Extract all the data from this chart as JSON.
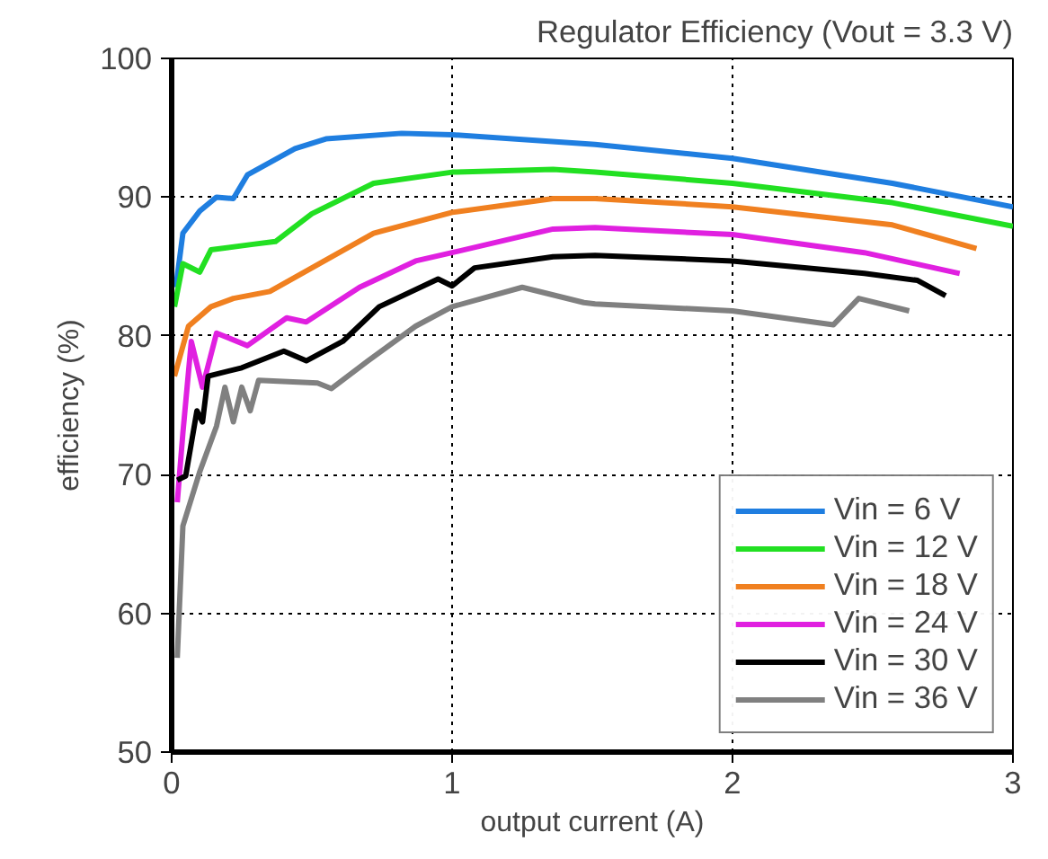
{
  "chart_data": {
    "type": "line",
    "title": "Regulator Efficiency (Vout = 3.3 V)",
    "xlabel": "output current (A)",
    "ylabel": "efficiency (%)",
    "xlim": [
      0,
      3
    ],
    "ylim": [
      50,
      100
    ],
    "xticks": [
      0,
      1,
      2,
      3
    ],
    "yticks": [
      50,
      60,
      70,
      80,
      90,
      100
    ],
    "grid": true,
    "legend": "bottom right",
    "line_style": "solid",
    "marker": "none",
    "series": [
      {
        "name": "Vin = 6 V",
        "color": "#1f7ee0",
        "x": [
          0.015,
          0.04,
          0.1,
          0.16,
          0.22,
          0.27,
          0.44,
          0.55,
          0.82,
          1.0,
          1.51,
          2.0,
          2.57,
          3.0
        ],
        "values": [
          83.5,
          87.4,
          89,
          90,
          89.9,
          91.6,
          93.5,
          94.2,
          94.6,
          94.5,
          93.8,
          92.8,
          91,
          89.3
        ]
      },
      {
        "name": "Vin = 12 V",
        "color": "#22e022",
        "x": [
          0.01,
          0.04,
          0.1,
          0.14,
          0.29,
          0.37,
          0.5,
          0.72,
          1.0,
          1.36,
          1.51,
          2.0,
          2.57,
          3.0
        ],
        "values": [
          82.1,
          85.2,
          84.6,
          86.2,
          86.6,
          86.8,
          88.8,
          91,
          91.8,
          92,
          91.8,
          91,
          89.6,
          87.9
        ]
      },
      {
        "name": "Vin = 18 V",
        "color": "#f08020",
        "x": [
          0.01,
          0.06,
          0.14,
          0.22,
          0.35,
          0.5,
          0.72,
          1.0,
          1.36,
          1.51,
          2.0,
          2.57,
          2.87
        ],
        "values": [
          77.1,
          80.7,
          82.1,
          82.7,
          83.2,
          84.9,
          87.4,
          88.9,
          89.9,
          89.9,
          89.3,
          88,
          86.3
        ]
      },
      {
        "name": "Vin = 24 V",
        "color": "#e020e0",
        "x": [
          0.02,
          0.04,
          0.07,
          0.11,
          0.16,
          0.27,
          0.41,
          0.48,
          0.67,
          0.87,
          1.0,
          1.36,
          1.51,
          2.0,
          2.47,
          2.81
        ],
        "values": [
          68,
          73,
          79.6,
          76.3,
          80.2,
          79.3,
          81.3,
          81,
          83.5,
          85.4,
          86,
          87.7,
          87.8,
          87.3,
          86,
          84.5
        ]
      },
      {
        "name": "Vin = 30 V",
        "color": "#000000",
        "x": [
          0.02,
          0.05,
          0.09,
          0.11,
          0.13,
          0.25,
          0.4,
          0.48,
          0.61,
          0.74,
          0.95,
          1.0,
          1.08,
          1.36,
          1.51,
          2.0,
          2.47,
          2.66,
          2.76
        ],
        "values": [
          69.6,
          69.9,
          74.6,
          73.8,
          77.1,
          77.7,
          78.9,
          78.2,
          79.6,
          82.1,
          84.1,
          83.6,
          84.9,
          85.7,
          85.8,
          85.4,
          84.5,
          84,
          82.9
        ]
      },
      {
        "name": "Vin = 36 V",
        "color": "#808080",
        "x": [
          0.02,
          0.04,
          0.1,
          0.16,
          0.19,
          0.22,
          0.25,
          0.28,
          0.31,
          0.52,
          0.57,
          0.7,
          0.87,
          1.0,
          1.25,
          1.47,
          1.51,
          2.0,
          2.36,
          2.45,
          2.63
        ],
        "values": [
          56.8,
          66.3,
          70.2,
          73.5,
          76.3,
          73.8,
          76.3,
          74.6,
          76.8,
          76.6,
          76.2,
          78.2,
          80.7,
          82.1,
          83.5,
          82.4,
          82.3,
          81.8,
          80.8,
          82.7,
          81.8
        ]
      }
    ]
  }
}
